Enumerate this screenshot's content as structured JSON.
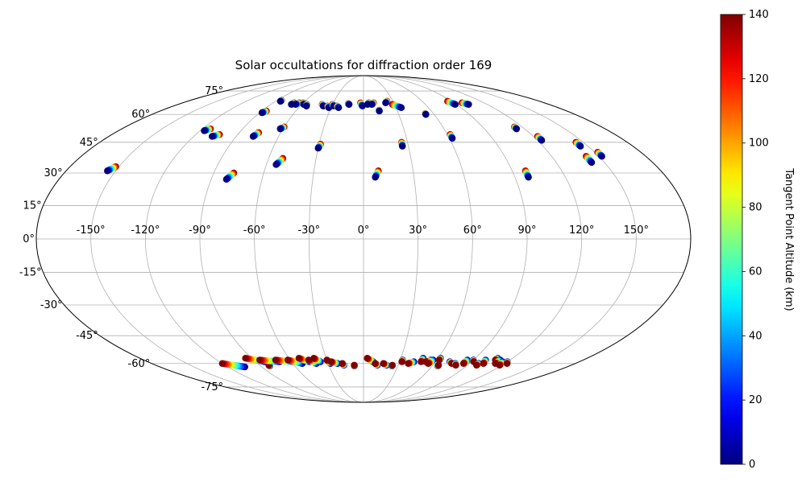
{
  "chart_data": {
    "type": "scatter",
    "projection": "mollweide",
    "title": "Solar occultations for diffraction order 169",
    "x_tick_labels": [
      "-150°",
      "-120°",
      "-90°",
      "-60°",
      "-30°",
      "0°",
      "30°",
      "60°",
      "90°",
      "120°",
      "150°"
    ],
    "y_tick_labels": [
      "-75°",
      "-60°",
      "-45°",
      "-30°",
      "-15°",
      "0°",
      "15°",
      "30°",
      "45°",
      "60°",
      "75°"
    ],
    "x_tick_values": [
      -150,
      -120,
      -90,
      -60,
      -30,
      0,
      30,
      60,
      90,
      120,
      150
    ],
    "y_tick_values": [
      -75,
      -60,
      -45,
      -30,
      -15,
      0,
      15,
      30,
      45,
      60,
      75
    ],
    "grid": true,
    "colorbar": {
      "label": "Tangent Point Altitude (km)",
      "colormap": "jet",
      "range": [
        0,
        140
      ],
      "tick_labels": [
        "0",
        "20",
        "40",
        "60",
        "80",
        "100",
        "120",
        "140"
      ],
      "tick_values": [
        0,
        20,
        40,
        60,
        80,
        100,
        120,
        140
      ]
    },
    "series": [
      {
        "points_note": "each track: [lon, lat] pairs from low altitude (0 km) to high altitude (140 km)",
        "tracks_north": [
          [
            [
              -155,
              31
            ],
            [
              -152,
              33
            ]
          ],
          [
            [
              -117,
              51
            ],
            [
              -114,
              52
            ]
          ],
          [
            [
              -107,
              48
            ],
            [
              -103,
              49
            ]
          ],
          [
            [
              -88,
              61
            ],
            [
              -86,
              62
            ]
          ],
          [
            [
              -85,
              68
            ],
            [
              -85,
              68.5
            ]
          ],
          [
            [
              -70,
              66
            ],
            [
              -69,
              67
            ]
          ],
          [
            [
              -66,
              66
            ],
            [
              -64,
              67
            ]
          ],
          [
            [
              -58,
              66
            ],
            [
              -60,
              67
            ]
          ],
          [
            [
              -54,
              65
            ],
            [
              -55,
              66
            ]
          ],
          [
            [
              -38,
              65
            ],
            [
              -40,
              66
            ]
          ],
          [
            [
              -32,
              64
            ],
            [
              -34,
              65
            ]
          ],
          [
            [
              -28,
              65
            ],
            [
              -30,
              66
            ]
          ],
          [
            [
              -23,
              64
            ],
            [
              -25,
              65
            ]
          ],
          [
            [
              -14,
              66
            ],
            [
              -15,
              66.5
            ]
          ],
          [
            [
              -1,
              65
            ],
            [
              -3,
              67
            ]
          ],
          [
            [
              4,
              66
            ],
            [
              5,
              67
            ]
          ],
          [
            [
              8,
              66
            ],
            [
              10,
              67
            ]
          ],
          [
            [
              14,
              62
            ],
            [
              14,
              62.5
            ]
          ],
          [
            [
              22,
              67
            ],
            [
              24,
              68
            ]
          ],
          [
            [
              35,
              64
            ],
            [
              28,
              66
            ]
          ],
          [
            [
              53,
              60
            ],
            [
              53,
              60.5
            ]
          ],
          [
            [
              89,
              66
            ],
            [
              86,
              68
            ]
          ],
          [
            [
              102,
              66
            ],
            [
              98,
              67
            ]
          ],
          [
            [
              -78,
              48
            ],
            [
              -76,
              50
            ]
          ],
          [
            [
              -62,
              52
            ],
            [
              -60,
              53
            ]
          ],
          [
            [
              -81,
              27
            ],
            [
              -78,
              30
            ]
          ],
          [
            [
              -54,
              34
            ],
            [
              -51,
              37
            ]
          ],
          [
            [
              -30,
              42
            ],
            [
              -29,
              44
            ]
          ],
          [
            [
              7,
              28
            ],
            [
              9,
              31
            ]
          ],
          [
            [
              26,
              43
            ],
            [
              26,
              45
            ]
          ],
          [
            [
              62,
              47
            ],
            [
              62,
              49
            ]
          ],
          [
            [
              98,
              28
            ],
            [
              98,
              31
            ]
          ],
          [
            [
              114,
              52
            ],
            [
              114,
              53
            ]
          ],
          [
            [
              123,
              46
            ],
            [
              123,
              48
            ]
          ],
          [
            [
              142,
              35
            ],
            [
              142,
              38
            ]
          ],
          [
            [
              145,
              43
            ],
            [
              145,
              45
            ]
          ],
          [
            [
              152,
              38
            ],
            [
              152,
              40
            ]
          ]
        ],
        "tracks_south": [
          [
            [
              -120,
              -60
            ],
            [
              -105,
              -62
            ]
          ],
          [
            [
              -95,
              -57
            ],
            [
              -82,
              -59
            ]
          ],
          [
            [
              -82,
              -61
            ],
            [
              -82,
              -61.5
            ]
          ],
          [
            [
              -85,
              -58
            ],
            [
              -70,
              -59
            ]
          ],
          [
            [
              -72,
              -58
            ],
            [
              -58,
              -59
            ]
          ],
          [
            [
              -62,
              -58
            ],
            [
              -52,
              -60
            ]
          ],
          [
            [
              -52,
              -57
            ],
            [
              -45,
              -59
            ]
          ],
          [
            [
              -45,
              -58
            ],
            [
              -40,
              -60
            ]
          ],
          [
            [
              -40,
              -57
            ],
            [
              -36,
              -59
            ]
          ],
          [
            [
              -30,
              -58
            ],
            [
              -28,
              -60
            ]
          ],
          [
            [
              -27,
              -59
            ],
            [
              -22,
              -60
            ]
          ],
          [
            [
              -18,
              -60
            ],
            [
              -17,
              -61
            ]
          ],
          [
            [
              -8,
              -61
            ],
            [
              -8,
              -61.5
            ]
          ],
          [
            [
              3,
              -57
            ],
            [
              8,
              -59
            ]
          ],
          [
            [
              10,
              -60
            ],
            [
              12,
              -61
            ]
          ],
          [
            [
              17,
              -60
            ],
            [
              20,
              -61
            ]
          ],
          [
            [
              25,
              -61
            ],
            [
              25,
              -61.5
            ]
          ],
          [
            [
              32,
              -59
            ],
            [
              32,
              -58
            ]
          ],
          [
            [
              38,
              -60
            ],
            [
              42,
              -59
            ]
          ],
          [
            [
              48,
              -59
            ],
            [
              48,
              -57
            ]
          ],
          [
            [
              52,
              -59
            ],
            [
              55,
              -58
            ]
          ],
          [
            [
              55,
              -60
            ],
            [
              57,
              -58
            ]
          ],
          [
            [
              62,
              -58
            ],
            [
              62,
              -57
            ]
          ],
          [
            [
              65,
              -61
            ],
            [
              65,
              -61.5
            ]
          ],
          [
            [
              75,
              -60
            ],
            [
              72,
              -59
            ]
          ],
          [
            [
              80,
              -61
            ],
            [
              78,
              -60
            ]
          ],
          [
            [
              85,
              -60
            ],
            [
              85,
              -58
            ]
          ],
          [
            [
              92,
              -59
            ],
            [
              90,
              -58
            ]
          ],
          [
            [
              98,
              -61
            ],
            [
              98,
              -60
            ]
          ],
          [
            [
              102,
              -60
            ],
            [
              100,
              -58
            ]
          ],
          [
            [
              108,
              -58
            ],
            [
              108,
              -57
            ]
          ],
          [
            [
              112,
              -60
            ],
            [
              112,
              -58
            ]
          ],
          [
            [
              118,
              -61
            ],
            [
              116,
              -59
            ]
          ],
          [
            [
              122,
              -60
            ],
            [
              120,
              -59
            ]
          ]
        ]
      }
    ]
  }
}
